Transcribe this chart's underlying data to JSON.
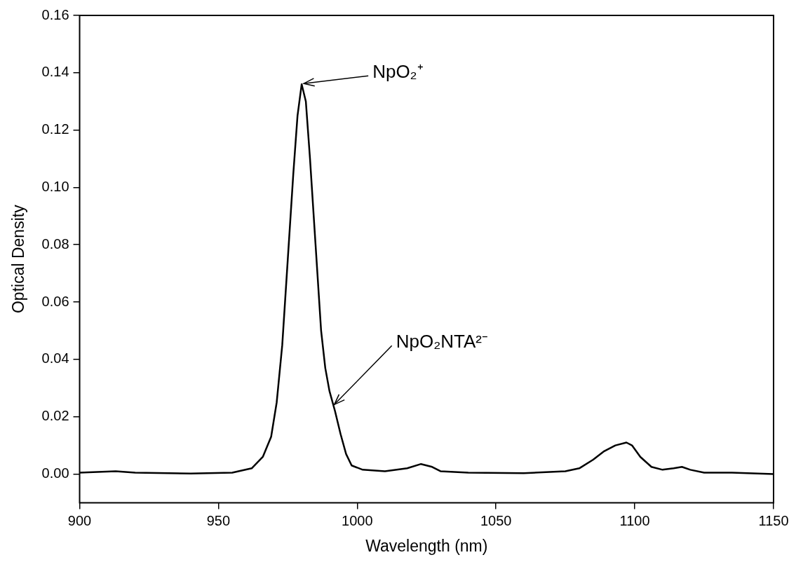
{
  "chart_data": {
    "type": "line",
    "xlabel": "Wavelength (nm)",
    "ylabel": "Optical Density",
    "xlim": [
      900,
      1150
    ],
    "xticks": [
      900,
      950,
      1000,
      1050,
      1100,
      1150
    ],
    "ylim": [
      -0.01,
      0.16
    ],
    "yticks": [
      {
        "value": 0,
        "label": "0.00"
      },
      {
        "value": 0.02,
        "label": "0.02"
      },
      {
        "value": 0.04,
        "label": "0.04"
      },
      {
        "value": 0.06,
        "label": "0.06"
      },
      {
        "value": 0.08,
        "label": "0.08"
      },
      {
        "value": 0.1,
        "label": "0.10"
      },
      {
        "value": 0.12,
        "label": "0.12"
      },
      {
        "value": 0.14,
        "label": "0.14"
      },
      {
        "value": 0.16,
        "label": "0.16"
      }
    ],
    "grid": false,
    "legend": false,
    "marker": "none",
    "line_style": "solid",
    "series": [
      {
        "color": "#000000",
        "x": [
          900,
          913,
          920,
          940,
          955,
          962,
          966,
          969,
          971,
          973,
          975,
          977,
          978.5,
          980,
          981.5,
          983,
          985,
          987,
          988.5,
          990,
          992,
          994,
          996,
          998,
          1002,
          1010,
          1018,
          1023,
          1027,
          1030,
          1040,
          1060,
          1075,
          1080,
          1085,
          1089,
          1093,
          1097,
          1099,
          1102,
          1106,
          1110,
          1114,
          1117,
          1120,
          1125,
          1135,
          1150
        ],
        "values": [
          0.0005,
          0.001,
          0.0005,
          0.0002,
          0.0005,
          0.002,
          0.006,
          0.013,
          0.025,
          0.045,
          0.075,
          0.105,
          0.125,
          0.136,
          0.13,
          0.11,
          0.08,
          0.05,
          0.037,
          0.029,
          0.022,
          0.014,
          0.007,
          0.003,
          0.0015,
          0.001,
          0.002,
          0.0035,
          0.0025,
          0.001,
          0.0005,
          0.0003,
          0.001,
          0.002,
          0.005,
          0.008,
          0.01,
          0.011,
          0.01,
          0.006,
          0.0025,
          0.0015,
          0.002,
          0.0025,
          0.0015,
          0.0005,
          0.0005,
          0
        ]
      }
    ],
    "annotations": [
      {
        "text": "NpO₂⁺",
        "x": 980,
        "y": 0.136
      },
      {
        "text": "NpO₂NTA²⁻",
        "x": 991,
        "y": 0.024
      }
    ]
  }
}
